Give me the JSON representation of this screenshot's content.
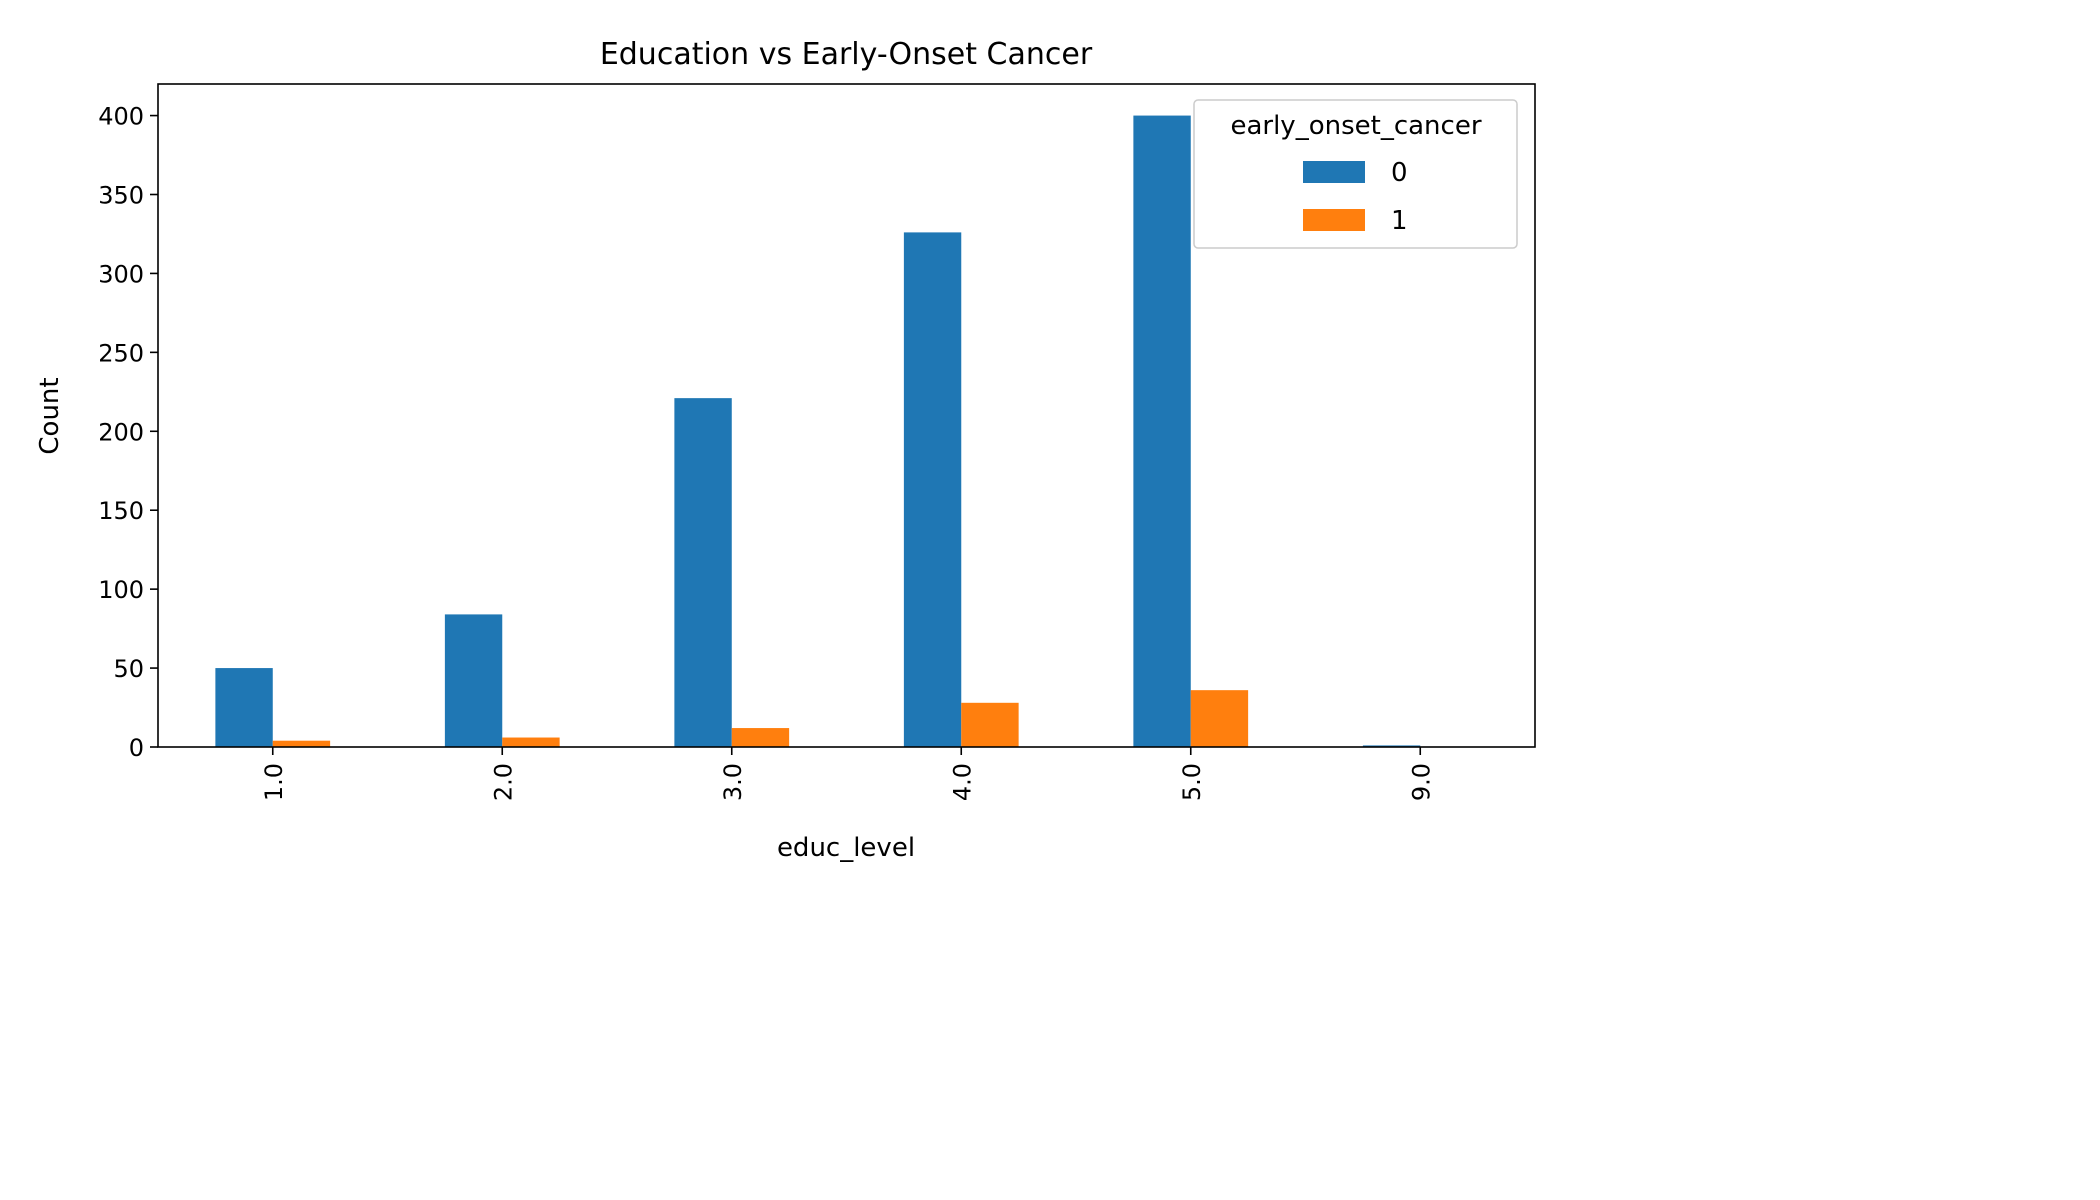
{
  "chart_data": {
    "type": "bar",
    "title": "Education vs Early-Onset Cancer",
    "xlabel": "educ_level",
    "ylabel": "Count",
    "categories": [
      "1.0",
      "2.0",
      "3.0",
      "4.0",
      "5.0",
      "9.0"
    ],
    "series": [
      {
        "name": "0",
        "color": "#1f77b4",
        "values": [
          50,
          84,
          221,
          326,
          400,
          1
        ]
      },
      {
        "name": "1",
        "color": "#ff7f0e",
        "values": [
          4,
          6,
          12,
          28,
          36,
          0
        ]
      }
    ],
    "ylim": [
      0,
      420
    ],
    "yticks": [
      0,
      50,
      100,
      150,
      200,
      250,
      300,
      350,
      400
    ],
    "grid": false,
    "legend": {
      "title": "early_onset_cancer",
      "placement": "top-right"
    }
  }
}
